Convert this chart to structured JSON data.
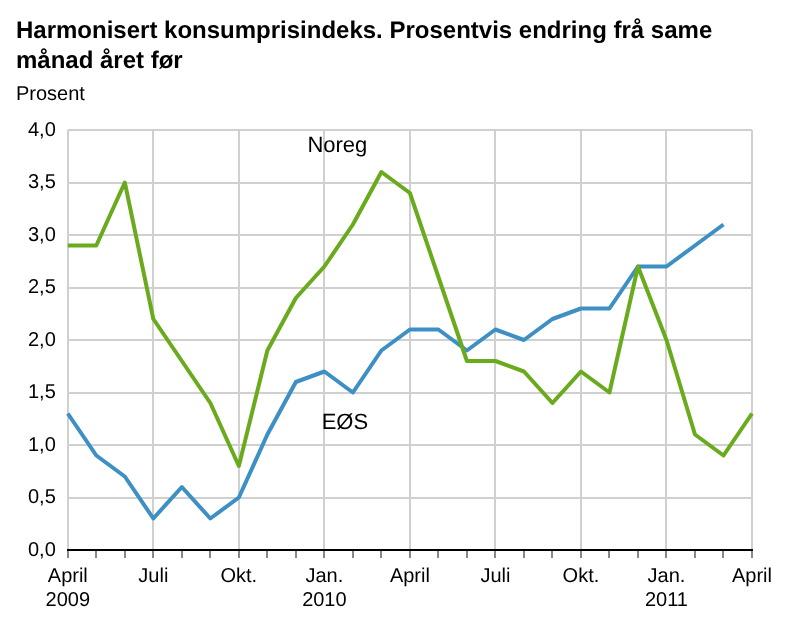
{
  "chart_data": {
    "type": "line",
    "title": "Harmonisert konsumprisindeks. Prosentvis endring frå same månad året før",
    "ylabel": "Prosent",
    "categories": [
      "April 2009",
      null,
      null,
      "Juli",
      null,
      null,
      "Okt.",
      null,
      null,
      "Jan. 2010",
      null,
      null,
      "April",
      null,
      null,
      "Juli",
      null,
      null,
      "Okt.",
      null,
      null,
      "Jan. 2011",
      null,
      null,
      "April"
    ],
    "series": [
      {
        "name": "Noreg",
        "color": "#6aab1e",
        "values": [
          2.9,
          2.9,
          3.5,
          2.2,
          1.8,
          1.4,
          0.8,
          1.9,
          2.4,
          2.7,
          3.1,
          3.6,
          3.4,
          2.6,
          1.8,
          1.8,
          1.7,
          1.4,
          1.7,
          1.5,
          2.7,
          2.0,
          1.1,
          0.9,
          1.3
        ]
      },
      {
        "name": "EØS",
        "color": "#3d8fc4",
        "values": [
          1.3,
          0.9,
          0.7,
          0.3,
          0.6,
          0.3,
          0.5,
          1.1,
          1.6,
          1.7,
          1.5,
          1.9,
          2.1,
          2.1,
          1.9,
          2.1,
          2.0,
          2.2,
          2.3,
          2.3,
          2.7,
          2.7,
          2.9,
          3.1,
          null
        ]
      }
    ],
    "ylim": [
      0,
      4
    ],
    "yticks": [
      {
        "value": 0,
        "label": "0,0"
      },
      {
        "value": 0.5,
        "label": "0,5"
      },
      {
        "value": 1,
        "label": "1,0"
      },
      {
        "value": 1.5,
        "label": "1,5"
      },
      {
        "value": 2,
        "label": "2,0"
      },
      {
        "value": 2.5,
        "label": "2,5"
      },
      {
        "value": 3,
        "label": "3,0"
      },
      {
        "value": 3.5,
        "label": "3,5"
      },
      {
        "value": 4,
        "label": "4,0"
      }
    ],
    "grid": true,
    "legend": false,
    "marker": "none",
    "line_style": "solid"
  }
}
